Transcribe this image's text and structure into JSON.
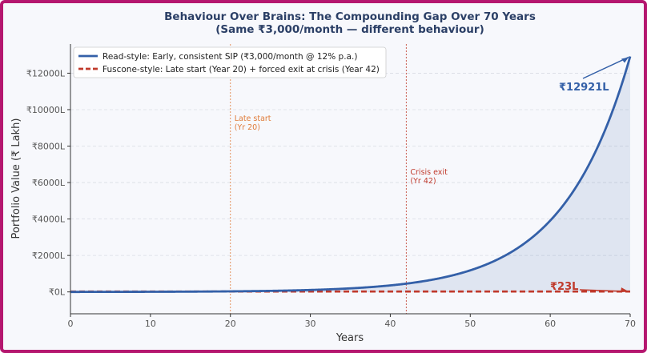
{
  "chart_data": {
    "type": "line",
    "title_line1": "Behaviour Over Brains: The Compounding Gap Over 70 Years",
    "title_line2": "(Same ₹3,000/month — different behaviour)",
    "xlabel": "Years",
    "ylabel": "Portfolio Value (₹ Lakh)",
    "xlim": [
      0,
      70
    ],
    "ylim": [
      -1200,
      13600
    ],
    "x_ticks": [
      0,
      10,
      20,
      30,
      40,
      50,
      60,
      70
    ],
    "y_ticks": [
      0,
      2000,
      4000,
      6000,
      8000,
      10000,
      12000
    ],
    "y_tick_labels": [
      "₹0L",
      "₹2000L",
      "₹4000L",
      "₹6000L",
      "₹8000L",
      "₹10000L",
      "₹12000L"
    ],
    "grid": "y-dashed",
    "legend_position": "top-left",
    "series": [
      {
        "name": "Read-style: Early, consistent SIP (₹3,000/month @ 12% p.a.)",
        "color": "#3460a8",
        "style": "solid",
        "monthly": 3000,
        "rate": 0.12,
        "start_year": 0,
        "end_year": 70,
        "shaded": true,
        "final_value": 12921
      },
      {
        "name": "Fuscone-style: Late start (Year 20) + forced exit at crisis (Year 42)",
        "color": "#c0392b",
        "style": "dashed",
        "final_value": 23
      }
    ],
    "vlines": [
      {
        "x": 20,
        "label_line1": "Late start",
        "label_line2": "(Yr 20)",
        "color": "#e07b39"
      },
      {
        "x": 42,
        "label_line1": "Crisis exit",
        "label_line2": "(Yr 42)",
        "color": "#c0392b"
      }
    ],
    "annotations": [
      {
        "text": "₹12921L",
        "x": 70,
        "y": 12921,
        "color": "#3460a8"
      },
      {
        "text": "₹23L",
        "x": 70,
        "y": 23,
        "color": "#c0392b"
      }
    ]
  }
}
